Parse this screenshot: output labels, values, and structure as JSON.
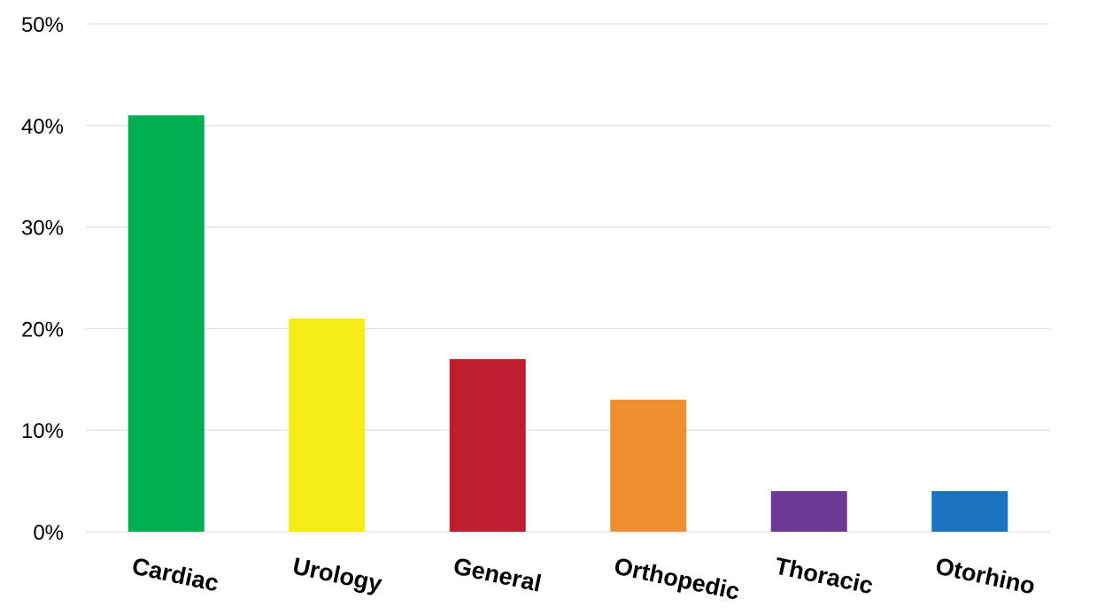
{
  "chart_data": {
    "type": "bar",
    "categories": [
      "Cardiac",
      "Urology",
      "General",
      "Orthopedic",
      "Thoracic",
      "Otorhino"
    ],
    "values": [
      41,
      21,
      17,
      13,
      4,
      4
    ],
    "colors": [
      "#00b050",
      "#f5ec1a",
      "#be1e2d",
      "#ee8f32",
      "#6d3a96",
      "#1b72be"
    ],
    "title": "",
    "xlabel": "",
    "ylabel": "",
    "ylim": [
      0,
      50
    ],
    "yticks": [
      0,
      10,
      20,
      30,
      40,
      50
    ],
    "ytick_labels": [
      "0%",
      "10%",
      "20%",
      "30%",
      "40%",
      "50%"
    ],
    "grid": true,
    "legend": "none"
  }
}
